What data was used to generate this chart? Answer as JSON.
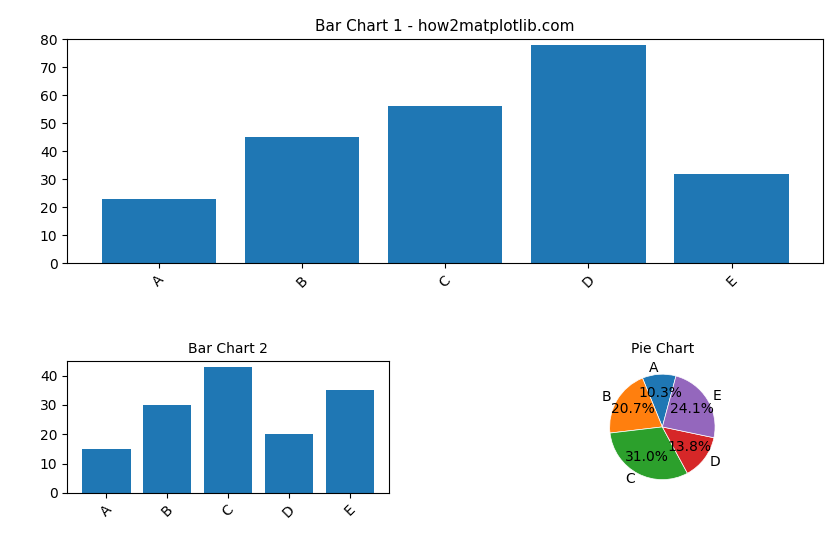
{
  "bar1_categories": [
    "A",
    "B",
    "C",
    "D",
    "E"
  ],
  "bar1_values": [
    23,
    45,
    56,
    78,
    32
  ],
  "bar1_title": "Bar Chart 1 - how2matplotlib.com",
  "bar1_color": "#1f77b4",
  "bar2_categories": [
    "A",
    "B",
    "C",
    "D",
    "E"
  ],
  "bar2_values": [
    15,
    30,
    43,
    20,
    35
  ],
  "bar2_title": "Bar Chart 2",
  "bar2_color": "#1f77b4",
  "pie_labels": [
    "A",
    "B",
    "C",
    "D",
    "E"
  ],
  "pie_values": [
    10.3,
    20.7,
    31.0,
    13.8,
    24.1
  ],
  "pie_colors": [
    "#1f77b4",
    "#ff7f0e",
    "#2ca02c",
    "#d62728",
    "#9467bd"
  ],
  "pie_title": "Pie Chart",
  "bar1_ylim": [
    0,
    80
  ],
  "bar2_ylim": [
    0,
    45
  ],
  "bar1_yticks": [
    0,
    10,
    20,
    30,
    40,
    50,
    60,
    70,
    80
  ],
  "bar2_yticks": [
    0,
    10,
    20,
    30,
    40
  ],
  "figsize": [
    8.4,
    5.6
  ],
  "dpi": 100
}
